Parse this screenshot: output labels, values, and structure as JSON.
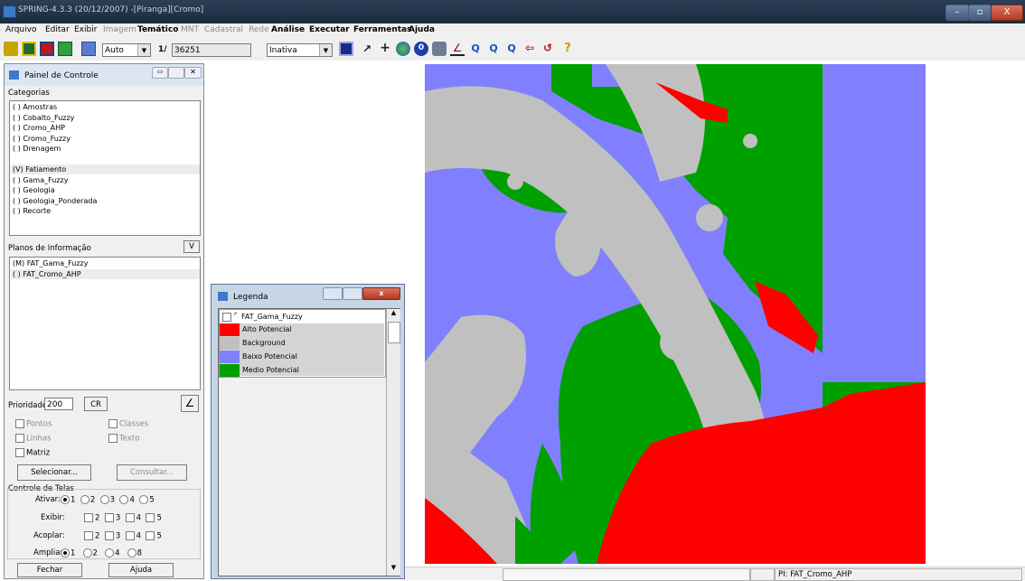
{
  "window": {
    "title": "SPRING-4.3.3 (20/12/2007) -[Piranga][Cromo]",
    "controls": [
      "–",
      "▫",
      "X"
    ]
  },
  "menu": [
    "Arquivo",
    "Editar",
    "Exibir",
    "Imagem",
    "Temático",
    "MNT",
    "Cadastral",
    "Rede",
    "Análise",
    "Executar",
    "Ferramentas",
    "Ajuda"
  ],
  "toolbar": {
    "zoom_mode": "Auto",
    "scale_prefix": "1/",
    "scale_value": "36251",
    "state": "Inativa"
  },
  "panel": {
    "title": "Painel de Controle",
    "categories_label": "Categorias",
    "categories": [
      "( ) Amostras",
      "( ) Cobalto_Fuzzy",
      "( ) Cromo_AHP",
      "( ) Cromo_Fuzzy",
      "( ) Drenagem",
      "(V) Fatiamento",
      "( ) Gama_Fuzzy",
      "( ) Geologia",
      "( ) Geologia_Ponderada",
      "( ) Recorte"
    ],
    "selected_category": "(V) Fatiamento",
    "planes_label": "Planos de Informação",
    "planes_v": "V",
    "planes": [
      "(M) FAT_Gama_Fuzzy",
      "( ) FAT_Cromo_AHP"
    ],
    "priority_label": "Prioridade:",
    "priority_value": "200",
    "cr_label": "CR",
    "checks": {
      "pontos": "Pontos",
      "classes": "Classes",
      "linhas": "Linhas",
      "texto": "Texto",
      "matriz": "Matriz"
    },
    "select_button": "Selecionar...",
    "consult_button": "Consultar...",
    "screens_label": "Controle de Telas",
    "ativar_label": "Ativar:",
    "exibir_label": "Exibir:",
    "acoplar_label": "Acoplar:",
    "ampliar_label": "Ampliar:",
    "screen_nums": [
      "1",
      "2",
      "3",
      "4",
      "5"
    ],
    "zoom_nums": [
      "1",
      "2",
      "4",
      "8"
    ],
    "close_button": "Fechar",
    "help_button": "Ajuda"
  },
  "legend": {
    "title": "Legenda",
    "layer": "FAT_Gama_Fuzzy",
    "items": [
      {
        "label": "Alto Potencial",
        "color": "#ff0000"
      },
      {
        "label": "Background",
        "color": "#c0c0c0"
      },
      {
        "label": "Baixo Potencial",
        "color": "#8080ff"
      },
      {
        "label": "Medio Potencial",
        "color": "#00a000"
      }
    ]
  },
  "status": {
    "pi": "PI: FAT_Cromo_AHP"
  }
}
